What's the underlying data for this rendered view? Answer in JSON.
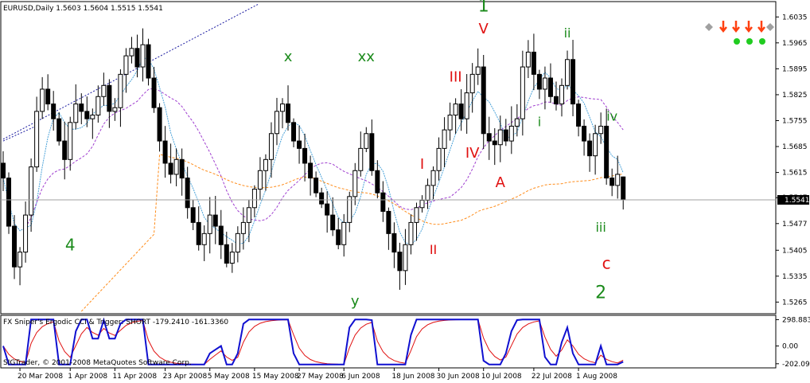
{
  "header": {
    "symbol_line": "EURUSD,Daily  1.5603 1.5604 1.5515 1.5541",
    "indicator_line": "FX Sniper's Ergodic CCI & Trigger: SHORT -179.2410 -161.3360",
    "copyright": "SIGTrader, © 2001-2008 MetaQuotes Software Corp."
  },
  "colors": {
    "background": "#ffffff",
    "candle": "#000000",
    "ma_fast": "#4ca3d9",
    "ma_mid": "#a040d0",
    "ma_slow": "#ff8c1a",
    "channel": "#1a1aa0",
    "wave_green": "#1a8a1a",
    "wave_red": "#e01010",
    "cci": "#1010d0",
    "trigger": "#e01010"
  },
  "price_tag": "1.5541",
  "wave_labels": [
    {
      "text": "1",
      "color": "green",
      "size": 22,
      "bar": 86,
      "price": 1.605
    },
    {
      "text": "2",
      "color": "green",
      "size": 22,
      "bar": 107,
      "price": 1.5275
    },
    {
      "text": "4",
      "color": "green",
      "size": 20,
      "bar": 12,
      "price": 1.5405
    },
    {
      "text": "x",
      "color": "green",
      "size": 18,
      "bar": 51,
      "price": 1.5915
    },
    {
      "text": "xx",
      "color": "green",
      "size": 18,
      "bar": 65,
      "price": 1.5915
    },
    {
      "text": "y",
      "color": "green",
      "size": 18,
      "bar": 63,
      "price": 1.5255
    },
    {
      "text": "ii",
      "color": "green",
      "size": 16,
      "bar": 101,
      "price": 1.598
    },
    {
      "text": "i",
      "color": "green",
      "size": 16,
      "bar": 96,
      "price": 1.574
    },
    {
      "text": "iv",
      "color": "green",
      "size": 16,
      "bar": 109,
      "price": 1.5755
    },
    {
      "text": "iii",
      "color": "green",
      "size": 16,
      "bar": 107,
      "price": 1.5455
    },
    {
      "text": "V",
      "color": "red",
      "size": 18,
      "bar": 86,
      "price": 1.599
    },
    {
      "text": "III",
      "color": "red",
      "size": 18,
      "bar": 81,
      "price": 1.586
    },
    {
      "text": "IV",
      "color": "red",
      "size": 18,
      "bar": 84,
      "price": 1.5655
    },
    {
      "text": "I",
      "color": "red",
      "size": 18,
      "bar": 75,
      "price": 1.5625
    },
    {
      "text": "II",
      "color": "red",
      "size": 16,
      "bar": 77,
      "price": 1.5395
    },
    {
      "text": "A",
      "color": "red",
      "size": 18,
      "bar": 89,
      "price": 1.5575
    },
    {
      "text": "c",
      "color": "red",
      "size": 20,
      "bar": 108,
      "price": 1.5355
    }
  ],
  "chart_data": [
    {
      "type": "candlestick",
      "title": "EURUSD,Daily",
      "ohlc_last": {
        "open": 1.5603,
        "high": 1.5604,
        "low": 1.5515,
        "close": 1.5541
      },
      "ylim": [
        1.524,
        1.607
      ],
      "y_ticks": [
        1.6035,
        1.5965,
        1.5895,
        1.5825,
        1.5755,
        1.5685,
        1.5615,
        1.5547,
        1.5477,
        1.5405,
        1.5335,
        1.5265
      ],
      "x_tick_labels": [
        {
          "label": "20 Mar 2008",
          "bar": 3
        },
        {
          "label": "1 Apr 2008",
          "bar": 12
        },
        {
          "label": "11 Apr 2008",
          "bar": 20
        },
        {
          "label": "23 Apr 2008",
          "bar": 29
        },
        {
          "label": "5 May 2008",
          "bar": 37
        },
        {
          "label": "15 May 2008",
          "bar": 45
        },
        {
          "label": "27 May 2008",
          "bar": 53
        },
        {
          "label": "6 Jun 2008",
          "bar": 61
        },
        {
          "label": "18 Jun 2008",
          "bar": 70
        },
        {
          "label": "30 Jun 2008",
          "bar": 78
        },
        {
          "label": "10 Jul 2008",
          "bar": 86
        },
        {
          "label": "22 Jul 2008",
          "bar": 95
        },
        {
          "label": "1 Aug 2008",
          "bar": 103
        }
      ],
      "closes": [
        1.56,
        1.547,
        1.536,
        1.54,
        1.55,
        1.563,
        1.578,
        1.584,
        1.58,
        1.576,
        1.57,
        1.565,
        1.575,
        1.58,
        1.578,
        1.576,
        1.577,
        1.582,
        1.585,
        1.578,
        1.579,
        1.588,
        1.593,
        1.595,
        1.59,
        1.596,
        1.587,
        1.579,
        1.57,
        1.564,
        1.561,
        1.565,
        1.56,
        1.552,
        1.548,
        1.542,
        1.545,
        1.55,
        1.547,
        1.542,
        1.537,
        1.54,
        1.545,
        1.548,
        1.552,
        1.557,
        1.562,
        1.565,
        1.572,
        1.578,
        1.58,
        1.575,
        1.57,
        1.568,
        1.564,
        1.56,
        1.556,
        1.553,
        1.55,
        1.546,
        1.542,
        1.548,
        1.555,
        1.562,
        1.568,
        1.572,
        1.562,
        1.556,
        1.551,
        1.545,
        1.54,
        1.535,
        1.542,
        1.548,
        1.552,
        1.554,
        1.558,
        1.562,
        1.568,
        1.573,
        1.577,
        1.58,
        1.576,
        1.583,
        1.588,
        1.59,
        1.572,
        1.57,
        1.569,
        1.573,
        1.57,
        1.574,
        1.576,
        1.59,
        1.594,
        1.588,
        1.584,
        1.587,
        1.582,
        1.58,
        1.585,
        1.592,
        1.58,
        1.574,
        1.57,
        1.566,
        1.572,
        1.574,
        1.56,
        1.558,
        1.561,
        1.5541
      ],
      "series": [
        {
          "name": "",
          "kind": "ma_fast",
          "period": 5
        },
        {
          "name": "",
          "kind": "ma_mid",
          "period": 15
        },
        {
          "name": "",
          "kind": "ma_slow",
          "period": 50
        }
      ]
    },
    {
      "type": "line",
      "title": "FX Sniper's Ergodic CCI & Trigger: SHORT",
      "last_values": [
        -179.241,
        -161.336
      ],
      "ylim": [
        -240,
        330
      ],
      "y_ticks": [
        298.883,
        0.0,
        -202.098
      ]
    }
  ]
}
